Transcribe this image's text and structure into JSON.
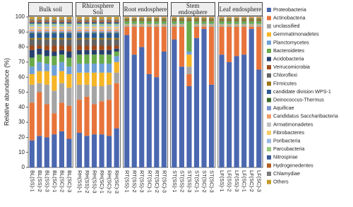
{
  "chart_data": {
    "type": "stacked_bar",
    "y_label": "Relative abundance (%)",
    "ylim": [
      0,
      100
    ],
    "yticks": [
      0,
      10,
      20,
      30,
      40,
      50,
      60,
      70,
      80,
      90,
      100
    ],
    "panels": [
      {
        "title": "Bulk soil",
        "categories": [
          "BL(SS)-1",
          "BL(SS)-2",
          "BL(SS)-3",
          "BL(SC)-1",
          "BL(SC)-2",
          "BL(SC)-3"
        ]
      },
      {
        "title": "Rhizosphere Soil",
        "categories": [
          "RH(SS)-1",
          "RH(SS)-2",
          "RH(SS)-3",
          "RH(SC)-1",
          "RH(SC)-2",
          "RH(SC)-3"
        ]
      },
      {
        "title": "Root endosphere",
        "categories": [
          "RT(SS)-1",
          "RT(SS)-2",
          "RT(SS)-3",
          "RT(SC)-1",
          "RT(SC)-2",
          "RT(SC)-3"
        ]
      },
      {
        "title": "Stem endosphere",
        "categories": [
          "ST(SS)-1",
          "ST(SS)-2",
          "ST(SS)-3",
          "ST(SC)-1",
          "ST(SC)-2",
          "ST(SC)-3"
        ]
      },
      {
        "title": "Leaf endosphere",
        "categories": [
          "LF(SS)-1",
          "LF(SS)-2",
          "LF(SS)-3",
          "LF(SC)-1",
          "LF(SC)-2",
          "LF(SC)-3"
        ]
      }
    ],
    "series": [
      {
        "name": "Proteobacteria",
        "color": "#4a67b0",
        "values": [
          18,
          21,
          20,
          22,
          24,
          19,
          23,
          21,
          22,
          22,
          21,
          26,
          88,
          75,
          80,
          62,
          60,
          77,
          85,
          67,
          54,
          86,
          92,
          55,
          75,
          70,
          74,
          75,
          92,
          65
        ]
      },
      {
        "name": "Actinobacteria",
        "color": "#e8743b",
        "values": [
          25,
          29,
          22,
          14,
          19,
          22,
          22,
          26,
          20,
          22,
          24,
          30,
          5.5,
          18.5,
          13.5,
          31.5,
          33.5,
          16.5,
          8.5,
          26.5,
          8,
          7.5,
          1.5,
          38.5,
          18.5,
          23.5,
          19.5,
          18.5,
          1.5,
          28.5
        ]
      },
      {
        "name": "unclassified",
        "color": "#a5a5a5",
        "values": [
          12,
          6,
          13,
          15,
          13,
          12,
          10,
          8,
          12,
          10,
          10,
          7,
          1,
          1,
          1,
          1,
          1,
          1,
          1,
          1,
          5,
          1,
          1,
          1,
          1,
          1,
          1,
          1,
          1,
          1
        ]
      },
      {
        "name": "Gemmatimonadetes",
        "color": "#f6b526",
        "values": [
          7,
          8,
          9,
          10,
          8,
          9,
          8,
          8,
          9,
          9,
          8,
          7,
          0.5,
          0.5,
          0.5,
          0.5,
          0.5,
          0.5,
          0.5,
          0.5,
          8,
          0.5,
          0.5,
          0.5,
          0.5,
          0.5,
          0.5,
          0.5,
          0.5,
          0.5
        ]
      },
      {
        "name": "Planctomycetes",
        "color": "#6fa0d8",
        "values": [
          5,
          6,
          5,
          7,
          6,
          5,
          6,
          6,
          6,
          6,
          6,
          4,
          0.5,
          0.5,
          0.5,
          0.5,
          0.5,
          0.5,
          0.5,
          0.5,
          2,
          0.5,
          0.5,
          0.5,
          0.5,
          0.5,
          0.5,
          0.5,
          0.5,
          0.5
        ]
      },
      {
        "name": "Bacteroidetes",
        "color": "#6aaa4a",
        "values": [
          6,
          5,
          5,
          6,
          5,
          6,
          6,
          6,
          6,
          6,
          6,
          3,
          1.5,
          1.5,
          1.5,
          1.5,
          1.5,
          1.5,
          1.5,
          1.5,
          20,
          1.5,
          1.5,
          1.5,
          1.5,
          1.5,
          1.5,
          1.5,
          1.5,
          1.5
        ]
      },
      {
        "name": "Acidobacteria",
        "color": "#27406e",
        "values": [
          5,
          4,
          4,
          3,
          3,
          4,
          3,
          3,
          3,
          3,
          3,
          2,
          0,
          0,
          0,
          0,
          0,
          0,
          0,
          0,
          0,
          0,
          0,
          0,
          0,
          0,
          0,
          0,
          0,
          0
        ]
      },
      {
        "name": "Verrucomicrobia",
        "color": "#9c4a1c",
        "values": [
          3,
          2,
          3,
          4,
          3,
          4,
          3,
          3,
          3,
          3,
          3,
          2,
          0,
          0,
          0,
          0,
          0,
          0,
          0,
          0,
          0,
          0,
          0,
          0,
          0,
          0,
          0,
          0,
          0,
          0
        ]
      },
      {
        "name": "Chloroflexi",
        "color": "#636363",
        "values": [
          4,
          4,
          4,
          4,
          4,
          4,
          4,
          4,
          4,
          4,
          4,
          4,
          0.5,
          0.5,
          0.5,
          0.5,
          0.5,
          0.5,
          0.5,
          0.5,
          0.5,
          0.5,
          0.5,
          0.5,
          0.5,
          0.5,
          0.5,
          0.5,
          0.5,
          0.5
        ]
      },
      {
        "name": "Firmicutes",
        "color": "#9a7514",
        "values": [
          1,
          1,
          1,
          1,
          1,
          1,
          1,
          1,
          1,
          1,
          1,
          1,
          1,
          1,
          1,
          1,
          1,
          1,
          1,
          1,
          1,
          1,
          1,
          1,
          1,
          1,
          1,
          1,
          1,
          1
        ]
      },
      {
        "name": "candidate division WPS-1",
        "color": "#2c5a90",
        "values": [
          3,
          3,
          3,
          3,
          3,
          3,
          3,
          3,
          3,
          3,
          3,
          3,
          0,
          0,
          0,
          0,
          0,
          0,
          0,
          0,
          0,
          0,
          0,
          0,
          0,
          0,
          0,
          0,
          0,
          0
        ]
      },
      {
        "name": "Deinococcus-Thermus",
        "color": "#3c6a2a",
        "values": [
          0.5,
          0.5,
          0.5,
          0.5,
          0.5,
          0.5,
          0.5,
          0.5,
          0.5,
          0.5,
          0.5,
          0.5,
          0.5,
          0.5,
          0.5,
          0.5,
          0.5,
          0.5,
          0.5,
          0.5,
          0.5,
          0.5,
          0.5,
          0.5,
          0.5,
          0.5,
          0.5,
          0.5,
          0.5,
          0.5
        ]
      },
      {
        "name": "Aquificae",
        "color": "#7c92cf",
        "values": [
          1,
          1,
          1,
          1,
          1,
          1,
          1,
          1,
          1,
          1,
          1,
          1,
          0,
          0,
          0,
          0,
          0,
          0,
          0,
          0,
          0,
          0,
          0,
          0,
          0,
          0,
          0,
          0,
          0,
          0
        ]
      },
      {
        "name": "Candidatus Saccharibacteria",
        "color": "#f19c6c",
        "values": [
          1,
          1,
          1,
          1,
          1,
          1,
          1,
          1,
          1,
          1,
          1,
          1,
          0.5,
          0.5,
          0.5,
          0.5,
          0.5,
          0.5,
          0.5,
          0.5,
          0.5,
          0.5,
          0.5,
          0.5,
          0.5,
          0.5,
          0.5,
          0.5,
          0.5,
          0.5
        ]
      },
      {
        "name": "Armatimonadetes",
        "color": "#bfbfbf",
        "values": [
          1,
          1,
          1,
          1,
          1,
          1,
          1,
          1,
          1,
          1,
          1,
          1,
          0,
          0,
          0,
          0,
          0,
          0,
          0,
          0,
          0,
          0,
          0,
          0,
          0,
          0,
          0,
          0,
          0,
          0
        ]
      },
      {
        "name": "Fibrobacteres",
        "color": "#f8cc6a",
        "values": [
          1,
          1,
          1,
          1,
          1,
          1,
          1,
          1,
          1,
          1,
          1,
          1,
          0,
          0,
          0,
          0,
          0,
          0,
          0,
          0,
          0,
          0,
          0,
          0,
          0,
          0,
          0,
          0,
          0,
          0
        ]
      },
      {
        "name": "Poribacteria",
        "color": "#9bb8e4",
        "values": [
          1,
          1,
          1,
          1,
          1,
          1,
          1,
          1,
          1,
          1,
          1,
          1,
          0,
          0,
          0,
          0,
          0,
          0,
          0,
          0,
          0,
          0,
          0,
          0,
          0,
          0,
          0,
          0,
          0,
          0
        ]
      },
      {
        "name": "Parcubacteria",
        "color": "#96c87a",
        "values": [
          1,
          1,
          1,
          1,
          1,
          1,
          1,
          1,
          1,
          1,
          1,
          1,
          0,
          0,
          0,
          0,
          0,
          0,
          0,
          0,
          0,
          0,
          0,
          0,
          0,
          0,
          0,
          0,
          0,
          0
        ]
      },
      {
        "name": "Nitrospirae",
        "color": "#3a5a95",
        "values": [
          1,
          1,
          1,
          1,
          1,
          1,
          1,
          1,
          1,
          1,
          1,
          1,
          0,
          0,
          0,
          0,
          0,
          0,
          0,
          0,
          0,
          0,
          0,
          0,
          0,
          0,
          0,
          0,
          0,
          0
        ]
      },
      {
        "name": "Hydrogenedentes",
        "color": "#b25d23",
        "values": [
          1,
          1,
          1,
          1,
          1,
          1,
          1,
          1,
          1,
          1,
          1,
          1,
          0,
          0,
          0,
          0,
          0,
          0,
          0,
          0,
          0,
          0,
          0,
          0,
          0,
          0,
          0,
          0,
          0,
          0
        ]
      },
      {
        "name": "Chlamydiae",
        "color": "#7a7a7a",
        "values": [
          1,
          1,
          1,
          1,
          1,
          1,
          1,
          1,
          1,
          1,
          1,
          1,
          0,
          0,
          0,
          0,
          0,
          0,
          0,
          0,
          0,
          0,
          0,
          0,
          0,
          0,
          0,
          0,
          0,
          0
        ]
      },
      {
        "name": "Others",
        "color": "#c49a2a",
        "values": [
          1.5,
          1.5,
          1.5,
          1.5,
          1.5,
          1.5,
          1.5,
          1.5,
          1.5,
          1.5,
          1.5,
          1.5,
          0.5,
          0.5,
          0.5,
          0.5,
          0.5,
          0.5,
          0.5,
          0.5,
          0.5,
          0.5,
          0.5,
          0.5,
          0.5,
          0.5,
          0.5,
          0.5,
          0.5,
          0.5
        ]
      }
    ]
  }
}
